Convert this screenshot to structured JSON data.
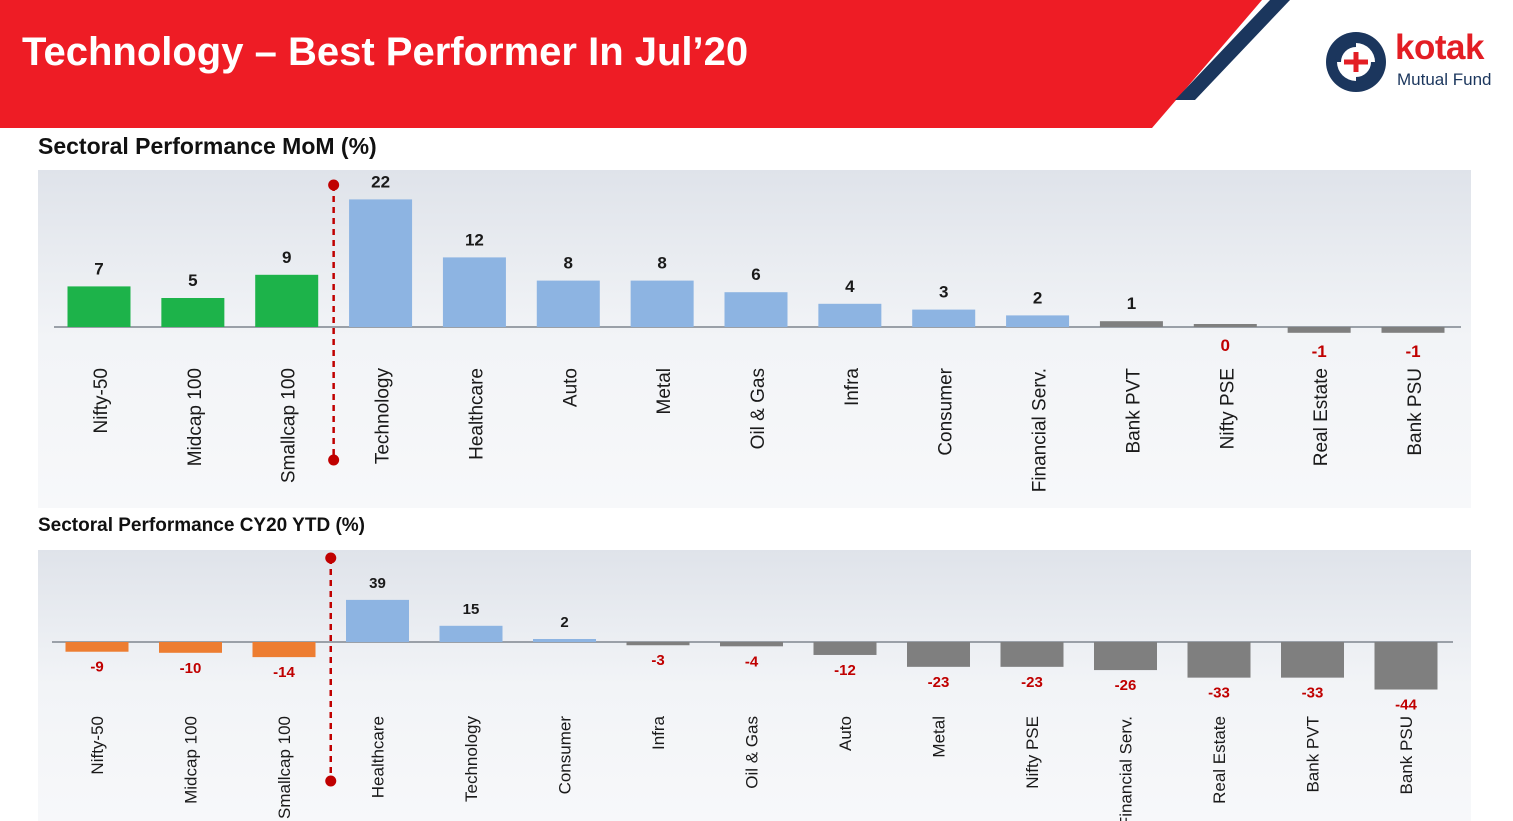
{
  "header": {
    "title": "Technology – Best Performer In Jul’20",
    "colors": {
      "red": "#ee1c25",
      "navy": "#1b365d"
    }
  },
  "logo": {
    "word": "kotak",
    "sub": "Mutual Fund",
    "icon": "kotak-logo-icon"
  },
  "section1": {
    "title": "Sectoral Performance MoM (%)"
  },
  "section2": {
    "title": "Sectoral Performance CY20 YTD (%)"
  },
  "chart_data": [
    {
      "type": "bar",
      "title": "Sectoral Performance MoM (%)",
      "categories": [
        "Nifty-50",
        "Midcap 100",
        "Smallcap 100",
        "Technology",
        "Healthcare",
        "Auto",
        "Metal",
        "Oil & Gas",
        "Infra",
        "Consumer",
        "Financial Serv.",
        "Bank PVT",
        "Nifty PSE",
        "Real Estate",
        "Bank PSU"
      ],
      "values": [
        7,
        5,
        9,
        22,
        12,
        8,
        8,
        6,
        4,
        3,
        2,
        1,
        0,
        -1,
        -1
      ],
      "labels": [
        "7",
        "5",
        "9",
        "22",
        "12",
        "8",
        "8",
        "6",
        "4",
        "3",
        "2",
        "1",
        "0",
        "-1",
        "-1"
      ],
      "colors": [
        "#1db34a",
        "#1db34a",
        "#1db34a",
        "#8db4e2",
        "#8db4e2",
        "#8db4e2",
        "#8db4e2",
        "#8db4e2",
        "#8db4e2",
        "#8db4e2",
        "#8db4e2",
        "#7f7f7f",
        "#7f7f7f",
        "#7f7f7f",
        "#7f7f7f"
      ],
      "divider_after_index": 2,
      "grid": false,
      "legend": "none"
    },
    {
      "type": "bar",
      "title": "Sectoral Performance CY20 YTD (%)",
      "categories": [
        "Nifty-50",
        "Midcap 100",
        "Smallcap 100",
        "Healthcare",
        "Technology",
        "Consumer",
        "Infra",
        "Oil & Gas",
        "Auto",
        "Metal",
        "Nifty PSE",
        "Financial Serv.",
        "Real Estate",
        "Bank PVT",
        "Bank PSU"
      ],
      "values": [
        -9,
        -10,
        -14,
        39,
        15,
        2,
        -3,
        -4,
        -12,
        -23,
        -23,
        -26,
        -33,
        -33,
        -44
      ],
      "labels": [
        "-9",
        "-10",
        "-14",
        "39",
        "15",
        "2",
        "-3",
        "-4",
        "-12",
        "-23",
        "-23",
        "-26",
        "-33",
        "-33",
        "-44"
      ],
      "colors": [
        "#ed7d31",
        "#ed7d31",
        "#ed7d31",
        "#8db4e2",
        "#8db4e2",
        "#8db4e2",
        "#7f7f7f",
        "#7f7f7f",
        "#7f7f7f",
        "#7f7f7f",
        "#7f7f7f",
        "#7f7f7f",
        "#7f7f7f",
        "#7f7f7f",
        "#7f7f7f"
      ],
      "divider_after_index": 2,
      "grid": false,
      "legend": "none"
    }
  ]
}
